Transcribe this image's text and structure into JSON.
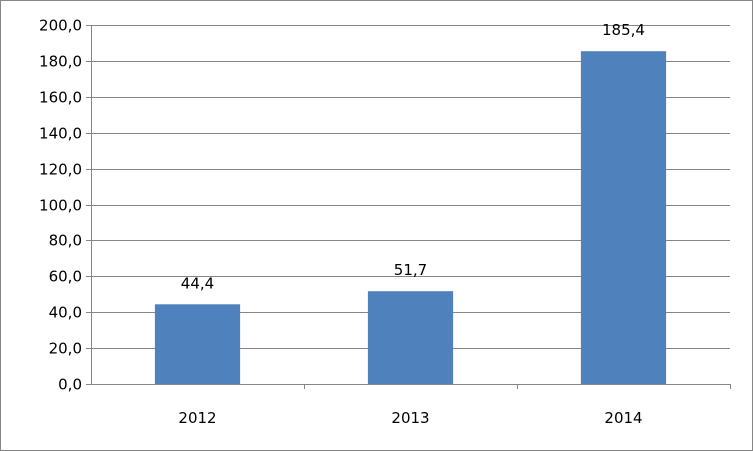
{
  "chart_data": {
    "type": "bar",
    "categories": [
      "2012",
      "2013",
      "2014"
    ],
    "values": [
      44.4,
      51.7,
      185.4
    ],
    "data_labels": [
      "44,4",
      "51,7",
      "185,4"
    ],
    "ylim": [
      0,
      200
    ],
    "y_ticks": [
      0,
      20,
      40,
      60,
      80,
      100,
      120,
      140,
      160,
      180,
      200
    ],
    "y_tick_labels": [
      "0,0",
      "20,0",
      "40,0",
      "60,0",
      "80,0",
      "100,0",
      "120,0",
      "140,0",
      "160,0",
      "180,0",
      "200,0"
    ],
    "grid": true,
    "legend": "none",
    "bar_color": "#4F81BD",
    "grid_color": "#868686",
    "title": "",
    "xlabel": "",
    "ylabel": ""
  }
}
